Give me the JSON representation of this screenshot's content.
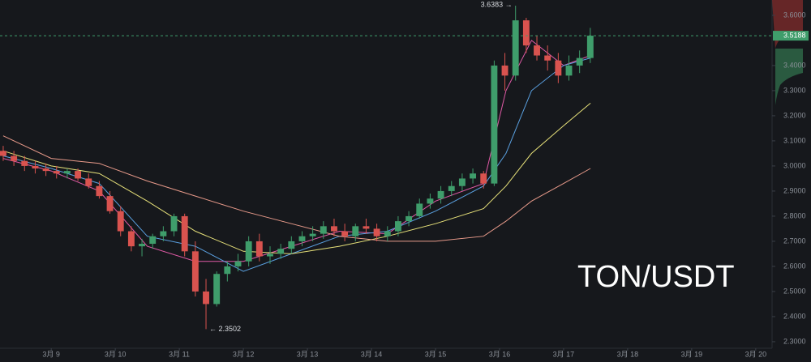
{
  "chart_data": {
    "type": "candlestick",
    "watermark": "TON/USDT",
    "high_label": "3.6383 →",
    "low_label": "← 2.3502",
    "last_price": 3.5188,
    "up_color": "#3f9d6b",
    "down_color": "#d9534f",
    "x": [
      8.25,
      8.4167,
      8.5833,
      8.75,
      8.9167,
      9.0833,
      9.25,
      9.4167,
      9.5833,
      9.75,
      9.9167,
      10.0833,
      10.25,
      10.4167,
      10.5833,
      10.75,
      10.9167,
      11.0833,
      11.25,
      11.4167,
      11.5833,
      11.75,
      11.9167,
      12.0833,
      12.25,
      12.4167,
      12.5833,
      12.75,
      12.9167,
      13.0833,
      13.25,
      13.4167,
      13.5833,
      13.75,
      13.9167,
      14.0833,
      14.25,
      14.4167,
      14.5833,
      14.75,
      14.9167,
      15.0833,
      15.25,
      15.4167,
      15.5833,
      15.75,
      15.9167,
      16.0833,
      16.25,
      16.4167,
      16.5833,
      16.75,
      16.9167,
      17.0833,
      17.25,
      17.4167
    ],
    "open": [
      3.06,
      3.04,
      3.02,
      3.0,
      2.99,
      2.98,
      2.97,
      2.98,
      2.95,
      2.92,
      2.88,
      2.82,
      2.74,
      2.68,
      2.69,
      2.72,
      2.74,
      2.8,
      2.66,
      2.5,
      2.45,
      2.57,
      2.6,
      2.62,
      2.7,
      2.64,
      2.65,
      2.67,
      2.7,
      2.72,
      2.73,
      2.76,
      2.74,
      2.72,
      2.76,
      2.75,
      2.72,
      2.74,
      2.78,
      2.8,
      2.85,
      2.87,
      2.9,
      2.92,
      2.95,
      2.97,
      2.93,
      3.4,
      3.36,
      3.58,
      3.48,
      3.44,
      3.42,
      3.36,
      3.4,
      3.43
    ],
    "high": [
      3.08,
      3.06,
      3.04,
      3.02,
      3.01,
      3.0,
      2.99,
      2.99,
      2.97,
      2.94,
      2.9,
      2.84,
      2.76,
      2.71,
      2.73,
      2.76,
      2.81,
      2.81,
      2.7,
      2.55,
      2.58,
      2.62,
      2.65,
      2.72,
      2.73,
      2.68,
      2.69,
      2.72,
      2.74,
      2.76,
      2.78,
      2.79,
      2.77,
      2.77,
      2.79,
      2.77,
      2.76,
      2.8,
      2.82,
      2.87,
      2.89,
      2.92,
      2.94,
      2.97,
      2.99,
      2.98,
      3.42,
      3.45,
      3.6383,
      3.59,
      3.52,
      3.48,
      3.45,
      3.44,
      3.46,
      3.55
    ],
    "low": [
      3.02,
      3.0,
      2.98,
      2.97,
      2.96,
      2.95,
      2.95,
      2.94,
      2.91,
      2.87,
      2.81,
      2.72,
      2.66,
      2.64,
      2.67,
      2.7,
      2.72,
      2.64,
      2.48,
      2.3502,
      2.44,
      2.54,
      2.58,
      2.6,
      2.62,
      2.61,
      2.63,
      2.65,
      2.68,
      2.7,
      2.71,
      2.72,
      2.7,
      2.7,
      2.73,
      2.7,
      2.7,
      2.72,
      2.76,
      2.79,
      2.83,
      2.85,
      2.88,
      2.9,
      2.93,
      2.91,
      2.92,
      3.3,
      3.34,
      3.45,
      3.42,
      3.38,
      3.33,
      3.34,
      3.37,
      3.41
    ],
    "close": [
      3.04,
      3.02,
      3.0,
      2.99,
      2.98,
      2.97,
      2.98,
      2.95,
      2.92,
      2.88,
      2.82,
      2.74,
      2.68,
      2.69,
      2.72,
      2.74,
      2.8,
      2.66,
      2.5,
      2.45,
      2.57,
      2.6,
      2.62,
      2.7,
      2.64,
      2.65,
      2.67,
      2.7,
      2.72,
      2.73,
      2.76,
      2.74,
      2.72,
      2.76,
      2.75,
      2.72,
      2.74,
      2.78,
      2.8,
      2.85,
      2.87,
      2.9,
      2.92,
      2.95,
      2.97,
      2.93,
      3.4,
      3.36,
      3.58,
      3.48,
      3.44,
      3.42,
      3.36,
      3.4,
      3.43,
      3.5188
    ],
    "ma_x": [
      8.25,
      9,
      9.75,
      10.5,
      11.25,
      12,
      12.75,
      13.5,
      14.25,
      15,
      15.75,
      16.1,
      16.5,
      17,
      17.42
    ],
    "ma_lines": [
      {
        "color": "#e05aa6",
        "values": [
          3.03,
          2.98,
          2.9,
          2.68,
          2.62,
          2.62,
          2.68,
          2.74,
          2.73,
          2.86,
          2.93,
          3.3,
          3.5,
          3.4,
          3.44
        ]
      },
      {
        "color": "#5aa0e0",
        "values": [
          3.04,
          2.99,
          2.93,
          2.72,
          2.68,
          2.58,
          2.65,
          2.72,
          2.74,
          2.82,
          2.92,
          3.05,
          3.3,
          3.4,
          3.43
        ]
      },
      {
        "color": "#e8e27a",
        "values": [
          3.06,
          3.0,
          2.97,
          2.86,
          2.74,
          2.66,
          2.65,
          2.68,
          2.72,
          2.77,
          2.83,
          2.92,
          3.05,
          3.16,
          3.25
        ]
      },
      {
        "color": "#e89a8a",
        "values": [
          3.12,
          3.03,
          3.01,
          2.94,
          2.88,
          2.82,
          2.77,
          2.72,
          2.7,
          2.7,
          2.72,
          2.78,
          2.86,
          2.93,
          2.99
        ]
      }
    ],
    "xlim": [
      8.2,
      20.23
    ],
    "ylim": [
      2.274,
      3.661
    ],
    "xticks": [
      {
        "value": 9,
        "label": "3月 9"
      },
      {
        "value": 10,
        "label": "3月 10"
      },
      {
        "value": 11,
        "label": "3月 11"
      },
      {
        "value": 12,
        "label": "3月 12"
      },
      {
        "value": 13,
        "label": "3月 13"
      },
      {
        "value": 14,
        "label": "3月 14"
      },
      {
        "value": 15,
        "label": "3月 15"
      },
      {
        "value": 16,
        "label": "3月 16"
      },
      {
        "value": 17,
        "label": "3月 17"
      },
      {
        "value": 18,
        "label": "3月 18"
      },
      {
        "value": 19,
        "label": "3月 19"
      },
      {
        "value": 20,
        "label": "3月 20"
      }
    ],
    "yticks": [
      {
        "value": 2.3,
        "label": "2.3000"
      },
      {
        "value": 2.4,
        "label": "2.4000"
      },
      {
        "value": 2.5,
        "label": "2.5000"
      },
      {
        "value": 2.6,
        "label": "2.6000"
      },
      {
        "value": 2.7,
        "label": "2.7000"
      },
      {
        "value": 2.8,
        "label": "2.8000"
      },
      {
        "value": 2.9,
        "label": "2.9000"
      },
      {
        "value": 3.0,
        "label": "3.0000"
      },
      {
        "value": 3.1,
        "label": "3.1000"
      },
      {
        "value": 3.2,
        "label": "3.2000"
      },
      {
        "value": 3.3,
        "label": "3.3000"
      },
      {
        "value": 3.4,
        "label": "3.4000"
      },
      {
        "value": 3.6,
        "label": "3.6000"
      }
    ],
    "grid": false
  }
}
